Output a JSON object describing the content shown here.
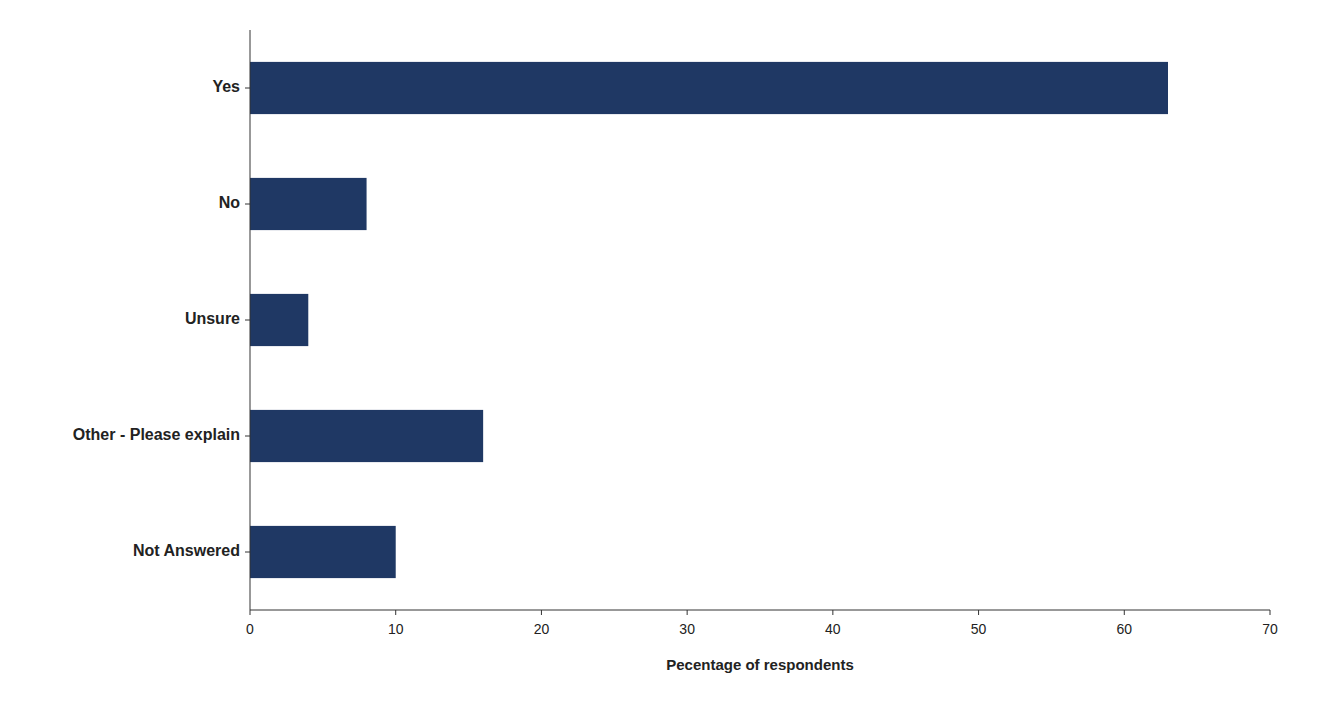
{
  "chart_data": {
    "type": "bar",
    "orientation": "horizontal",
    "categories": [
      "Not Answered",
      "Other - Please explain",
      "Unsure",
      "No",
      "Yes"
    ],
    "values": [
      10,
      16,
      4,
      8,
      63
    ],
    "color": "#1f3864",
    "xlabel": "Pecentage of respondents",
    "xlim": [
      0,
      70
    ],
    "xticks": [
      0,
      10,
      20,
      30,
      40,
      50,
      60,
      70
    ],
    "grid": false
  }
}
